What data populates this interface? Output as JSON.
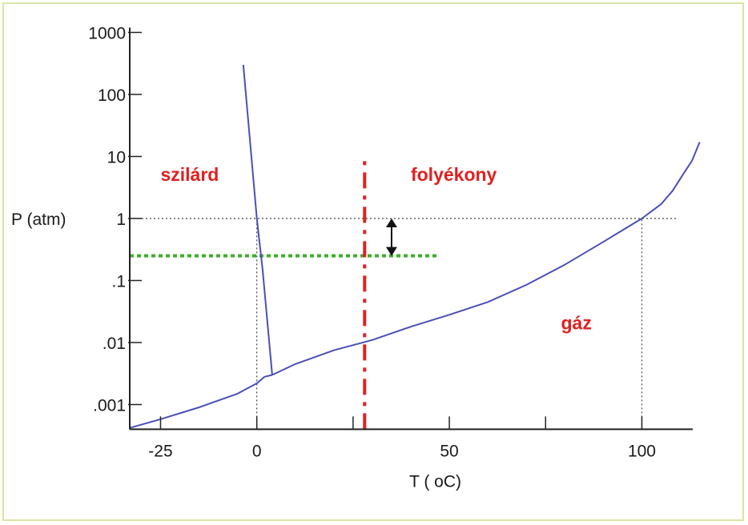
{
  "chart_data": {
    "type": "line",
    "title": "",
    "xlabel": "T ( oC)",
    "ylabel": "P (atm)",
    "x_scale": "linear",
    "y_scale": "log",
    "xlim": [
      -33,
      112
    ],
    "ylim": [
      0.0004,
      1000
    ],
    "x_ticks": [
      {
        "value": -25,
        "label": "-25"
      },
      {
        "value": 0,
        "label": "0"
      },
      {
        "value": 50,
        "label": "50"
      },
      {
        "value": 100,
        "label": "100"
      }
    ],
    "x_minor_ticks": [
      25,
      75
    ],
    "y_ticks": [
      {
        "value": 1000,
        "label": "1000"
      },
      {
        "value": 100,
        "label": "100"
      },
      {
        "value": 10,
        "label": "10"
      },
      {
        "value": 1,
        "label": "1"
      },
      {
        "value": 0.1,
        "label": ".1"
      },
      {
        "value": 0.01,
        "label": ".01"
      },
      {
        "value": 0.001,
        "label": ".001"
      }
    ],
    "series": [
      {
        "color": "#4a4fb8",
        "points": [
          [
            -33,
            0.00042
          ],
          [
            -25,
            0.00058
          ],
          [
            -15,
            0.0009
          ],
          [
            -5,
            0.0015
          ],
          [
            0,
            0.0022
          ],
          [
            2,
            0.0028
          ],
          [
            4,
            0.003
          ]
        ]
      },
      {
        "color": "#4a4fb8",
        "points": [
          [
            -3.5,
            300
          ],
          [
            0,
            1
          ],
          [
            1.5,
            0.15
          ],
          [
            4,
            0.003
          ]
        ]
      },
      {
        "color": "#4a4fb8",
        "points": [
          [
            4,
            0.003
          ],
          [
            10,
            0.0045
          ],
          [
            20,
            0.0075
          ],
          [
            30,
            0.011
          ],
          [
            40,
            0.018
          ],
          [
            50,
            0.028
          ],
          [
            60,
            0.045
          ],
          [
            70,
            0.085
          ],
          [
            80,
            0.18
          ],
          [
            90,
            0.42
          ],
          [
            100,
            1.0
          ],
          [
            105,
            1.7
          ],
          [
            108,
            2.8
          ],
          [
            111,
            5.5
          ],
          [
            113,
            8.5
          ],
          [
            115,
            17
          ]
        ]
      }
    ],
    "reference_lines": [
      {
        "kind": "horizontal",
        "y": 1,
        "x_from": -33,
        "x_to": 109,
        "style": "dotted",
        "color": "#444444"
      },
      {
        "kind": "vertical",
        "x": 0,
        "y_from": 0.0004,
        "y_to": 1,
        "style": "dotted",
        "color": "#444444"
      },
      {
        "kind": "vertical",
        "x": 100,
        "y_from": 0.0004,
        "y_to": 1,
        "style": "dotted",
        "color": "#444444"
      },
      {
        "kind": "horizontal",
        "y": 0.25,
        "x_from": -33,
        "x_to": 47,
        "style": "dotted",
        "color": "#3fae2b"
      },
      {
        "kind": "vertical",
        "x": 28,
        "y_from": 0.0004,
        "y_to": 10,
        "style": "dashdot",
        "color": "#e02020"
      }
    ],
    "double_arrow": {
      "x": 35,
      "y_from": 1,
      "y_to": 0.25,
      "color": "#111111"
    },
    "region_labels": [
      {
        "text": "szilárd",
        "x": -25,
        "y": 5,
        "color": "#e02020"
      },
      {
        "text": "folyékony",
        "x": 40,
        "y": 5,
        "color": "#e02020"
      },
      {
        "text": "gáz",
        "x": 79,
        "y": 0.02,
        "color": "#e02020"
      }
    ]
  }
}
